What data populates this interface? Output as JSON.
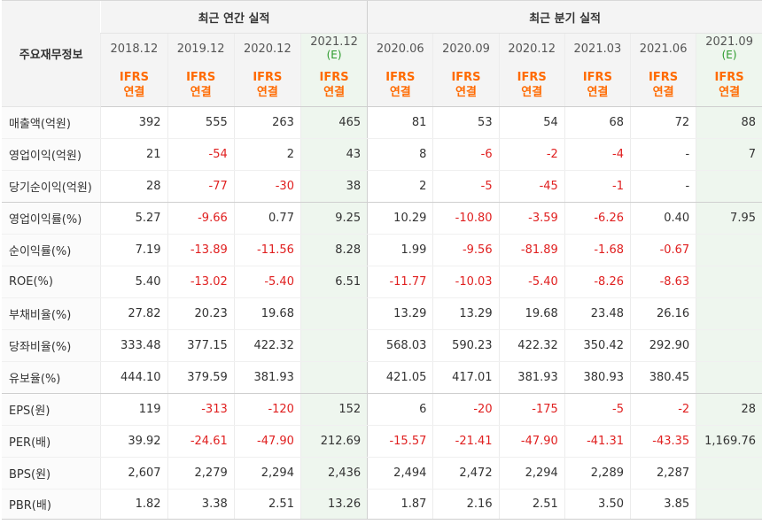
{
  "table": {
    "corner_label": "주요재무정보",
    "annual_group": "최근 연간 실적",
    "quarter_group": "최근 분기 실적",
    "columns": [
      {
        "date": "2018.12",
        "est": "",
        "ifrs1": "IFRS",
        "ifrs2": "연결"
      },
      {
        "date": "2019.12",
        "est": "",
        "ifrs1": "IFRS",
        "ifrs2": "연결"
      },
      {
        "date": "2020.12",
        "est": "",
        "ifrs1": "IFRS",
        "ifrs2": "연결"
      },
      {
        "date": "2021.12",
        "est": "(E)",
        "ifrs1": "IFRS",
        "ifrs2": "연결"
      },
      {
        "date": "2020.06",
        "est": "",
        "ifrs1": "IFRS",
        "ifrs2": "연결"
      },
      {
        "date": "2020.09",
        "est": "",
        "ifrs1": "IFRS",
        "ifrs2": "연결"
      },
      {
        "date": "2020.12",
        "est": "",
        "ifrs1": "IFRS",
        "ifrs2": "연결"
      },
      {
        "date": "2021.03",
        "est": "",
        "ifrs1": "IFRS",
        "ifrs2": "연결"
      },
      {
        "date": "2021.06",
        "est": "",
        "ifrs1": "IFRS",
        "ifrs2": "연결"
      },
      {
        "date": "2021.09",
        "est": "(E)",
        "ifrs1": "IFRS",
        "ifrs2": "연결"
      }
    ],
    "rows": [
      {
        "label": "매출액(억원)",
        "values": [
          "392",
          "555",
          "263",
          "465",
          "81",
          "53",
          "54",
          "68",
          "72",
          "88"
        ]
      },
      {
        "label": "영업이익(억원)",
        "values": [
          "21",
          "-54",
          "2",
          "43",
          "8",
          "-6",
          "-2",
          "-4",
          "-",
          "7"
        ]
      },
      {
        "label": "당기순이익(억원)",
        "values": [
          "28",
          "-77",
          "-30",
          "38",
          "2",
          "-5",
          "-45",
          "-1",
          "-",
          ""
        ]
      },
      {
        "label": "영업이익률(%)",
        "values": [
          "5.27",
          "-9.66",
          "0.77",
          "9.25",
          "10.29",
          "-10.80",
          "-3.59",
          "-6.26",
          "0.40",
          "7.95"
        ]
      },
      {
        "label": "순이익률(%)",
        "values": [
          "7.19",
          "-13.89",
          "-11.56",
          "8.28",
          "1.99",
          "-9.56",
          "-81.89",
          "-1.68",
          "-0.67",
          ""
        ]
      },
      {
        "label": "ROE(%)",
        "values": [
          "5.40",
          "-13.02",
          "-5.40",
          "6.51",
          "-11.77",
          "-10.03",
          "-5.40",
          "-8.26",
          "-8.63",
          ""
        ]
      },
      {
        "label": "부채비율(%)",
        "values": [
          "27.82",
          "20.23",
          "19.68",
          "",
          "13.29",
          "13.29",
          "19.68",
          "23.48",
          "26.16",
          ""
        ]
      },
      {
        "label": "당좌비율(%)",
        "values": [
          "333.48",
          "377.15",
          "422.32",
          "",
          "568.03",
          "590.23",
          "422.32",
          "350.42",
          "292.90",
          ""
        ]
      },
      {
        "label": "유보율(%)",
        "values": [
          "444.10",
          "379.59",
          "381.93",
          "",
          "421.05",
          "417.01",
          "381.93",
          "380.93",
          "380.45",
          ""
        ]
      },
      {
        "label": "EPS(원)",
        "values": [
          "119",
          "-313",
          "-120",
          "152",
          "6",
          "-20",
          "-175",
          "-5",
          "-2",
          "28"
        ]
      },
      {
        "label": "PER(배)",
        "values": [
          "39.92",
          "-24.61",
          "-47.90",
          "212.69",
          "-15.57",
          "-21.41",
          "-47.90",
          "-41.31",
          "-43.35",
          "1,169.76"
        ]
      },
      {
        "label": "BPS(원)",
        "values": [
          "2,607",
          "2,279",
          "2,294",
          "2,436",
          "2,494",
          "2,472",
          "2,294",
          "2,289",
          "2,287",
          ""
        ]
      },
      {
        "label": "PBR(배)",
        "values": [
          "1.82",
          "3.38",
          "2.51",
          "13.26",
          "1.87",
          "2.16",
          "2.51",
          "3.50",
          "3.85",
          ""
        ]
      }
    ],
    "colors": {
      "negative": "#e02020",
      "ifrs": "#ff6a00",
      "estimate_bg": "#eef6ee",
      "estimate_tag": "#2c9a2c"
    }
  }
}
